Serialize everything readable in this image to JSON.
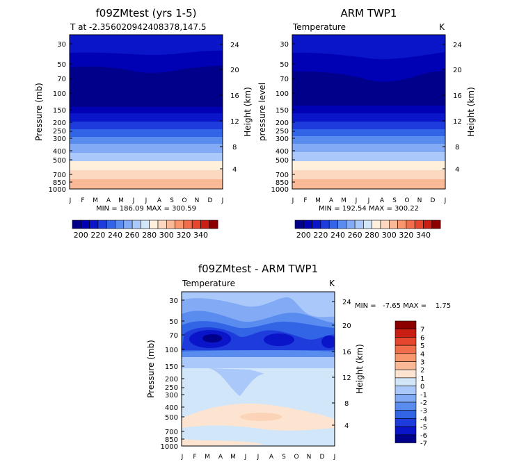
{
  "chart_data": [
    {
      "type": "heatmap",
      "title": "f09ZMtest (yrs 1-5)",
      "subtitle_left": "T at -2.356020942408378,147.5",
      "subtitle_right": "",
      "ylabel": "Pressure (mb)",
      "ylabel_right": "Height (km)",
      "min_max_text": "MIN = 186.09  MAX = 300.59",
      "x_ticks": [
        "J",
        "F",
        "M",
        "A",
        "M",
        "J",
        "J",
        "A",
        "S",
        "O",
        "N",
        "D",
        "J"
      ],
      "y_ticks": [
        "30",
        "50",
        "70",
        "100",
        "150",
        "200",
        "250",
        "300",
        "400",
        "500",
        "700",
        "850",
        "1000"
      ],
      "height_ticks": [
        "24",
        "20",
        "16",
        "12",
        "8",
        "4"
      ]
    },
    {
      "type": "heatmap",
      "title": "ARM TWP1",
      "subtitle_left": "Temperature",
      "subtitle_right": "K",
      "ylabel": "pressure level",
      "ylabel_right": "Height (km)",
      "min_max_text": "MIN = 192.54  MAX = 300.22",
      "x_ticks": [
        "J",
        "F",
        "M",
        "A",
        "M",
        "J",
        "J",
        "A",
        "S",
        "O",
        "N",
        "D",
        "J"
      ],
      "y_ticks": [
        "30",
        "50",
        "70",
        "100",
        "150",
        "200",
        "250",
        "300",
        "400",
        "500",
        "700",
        "850",
        "1000"
      ],
      "height_ticks": [
        "24",
        "20",
        "16",
        "12",
        "8",
        "4"
      ]
    },
    {
      "type": "heatmap",
      "title": "f09ZMtest - ARM TWP1",
      "subtitle_left": "Temperature",
      "subtitle_right": "K",
      "ylabel": "Pressure (mb)",
      "ylabel_right": "Height (km)",
      "min_max_text": "MIN =   -7.65 MAX =    1.75",
      "x_ticks": [
        "J",
        "F",
        "M",
        "A",
        "M",
        "J",
        "J",
        "A",
        "S",
        "O",
        "N",
        "D",
        "J"
      ],
      "y_ticks": [
        "30",
        "50",
        "70",
        "100",
        "150",
        "200",
        "250",
        "300",
        "400",
        "500",
        "700",
        "850",
        "1000"
      ],
      "height_ticks": [
        "24",
        "20",
        "16",
        "12",
        "8",
        "4"
      ]
    }
  ],
  "colorbar_abs": {
    "colors": [
      "#00008b",
      "#0000b4",
      "#0a14c8",
      "#1e3cdc",
      "#3264e6",
      "#5a8cf0",
      "#82aaf5",
      "#aac8fa",
      "#d2e6fa",
      "#fff0dc",
      "#fcd8c0",
      "#fab996",
      "#f8966e",
      "#f06e4b",
      "#e6462d",
      "#c81e14",
      "#8c0000"
    ],
    "labels": [
      "200",
      "220",
      "240",
      "260",
      "280",
      "300",
      "320",
      "340"
    ]
  },
  "colorbar_diff": {
    "colors": [
      "#00008b",
      "#0a14c8",
      "#1e3cdc",
      "#3264e6",
      "#5a8cf0",
      "#82aaf5",
      "#aac8fa",
      "#d2e6fa",
      "#fce4d0",
      "#fab996",
      "#f8966e",
      "#f06e4b",
      "#e6462d",
      "#c81e14",
      "#8c0000"
    ],
    "labels": [
      "-7",
      "-6",
      "-5",
      "-4",
      "-3",
      "-2",
      "-1",
      "0",
      "1",
      "2",
      "3",
      "4",
      "5",
      "6",
      "7"
    ]
  }
}
